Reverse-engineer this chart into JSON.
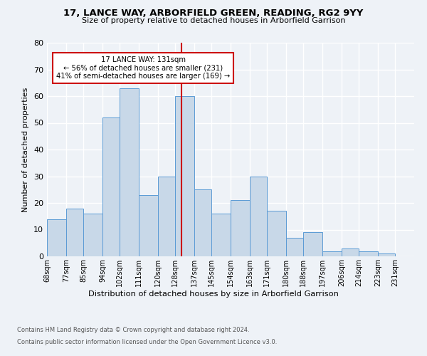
{
  "title": "17, LANCE WAY, ARBORFIELD GREEN, READING, RG2 9YY",
  "subtitle": "Size of property relative to detached houses in Arborfield Garrison",
  "xlabel": "Distribution of detached houses by size in Arborfield Garrison",
  "ylabel": "Number of detached properties",
  "bin_edges": [
    68,
    77,
    85,
    94,
    102,
    111,
    120,
    128,
    137,
    145,
    154,
    163,
    171,
    180,
    188,
    197,
    206,
    214,
    223,
    231,
    240
  ],
  "bin_heights": [
    14,
    18,
    16,
    52,
    63,
    23,
    30,
    60,
    25,
    16,
    21,
    30,
    17,
    7,
    9,
    2,
    3,
    2,
    1,
    0
  ],
  "bar_color": "#c8d8e8",
  "bar_edge_color": "#5b9bd5",
  "vline_x": 131,
  "vline_color": "#cc0000",
  "annotation_title": "17 LANCE WAY: 131sqm",
  "annotation_line1": "← 56% of detached houses are smaller (231)",
  "annotation_line2": "41% of semi-detached houses are larger (169) →",
  "annotation_box_color": "#cc0000",
  "ylim": [
    0,
    80
  ],
  "yticks": [
    0,
    10,
    20,
    30,
    40,
    50,
    60,
    70,
    80
  ],
  "footer1": "Contains HM Land Registry data © Crown copyright and database right 2024.",
  "footer2": "Contains public sector information licensed under the Open Government Licence v3.0.",
  "bg_color": "#eef2f7",
  "grid_color": "#ffffff"
}
